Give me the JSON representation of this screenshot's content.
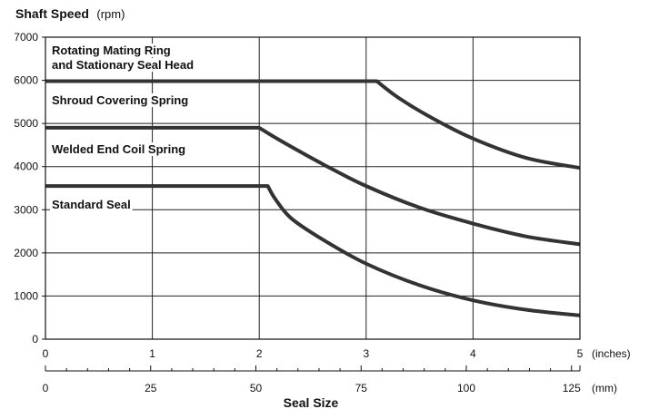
{
  "chart_data": {
    "type": "line",
    "title": "Shaft Speed",
    "title_unit": "(rpm)",
    "xlabel": "Seal Size",
    "xlim": [
      0,
      5
    ],
    "ylim": [
      0,
      7000
    ],
    "grid": true,
    "y_ticks": [
      0,
      1000,
      2000,
      3000,
      4000,
      5000,
      6000,
      7000
    ],
    "x_ticks_inches": [
      0,
      1,
      2,
      3,
      4,
      5
    ],
    "x_unit_inches": "(inches)",
    "x_ticks_mm": [
      0,
      25,
      50,
      75,
      100,
      125
    ],
    "x_unit_mm": "(mm)",
    "series": [
      {
        "name": "Rotating Mating Ring and Stationary Seal Head",
        "label_lines": [
          "Rotating Mating Ring",
          "and Stationary Seal Head"
        ],
        "x": [
          0,
          3.1,
          3.3,
          3.6,
          4.0,
          4.5,
          5.0
        ],
        "y": [
          5980,
          5980,
          5600,
          5150,
          4650,
          4200,
          3970
        ]
      },
      {
        "name": "Shroud Covering Spring",
        "label_lines": [
          "Shroud Covering Spring"
        ],
        "x": [],
        "y": []
      },
      {
        "name": "Welded End Coil Spring",
        "label_lines": [
          "Welded End Coil Spring"
        ],
        "x": [
          0,
          2.0,
          2.2,
          2.6,
          3.0,
          3.5,
          4.0,
          4.5,
          5.0
        ],
        "y": [
          4900,
          4900,
          4600,
          4050,
          3550,
          3050,
          2680,
          2380,
          2200
        ]
      },
      {
        "name": "Standard Seal",
        "label_lines": [
          "Standard Seal"
        ],
        "x": [
          0,
          2.08,
          2.15,
          2.3,
          2.6,
          3.0,
          3.5,
          4.0,
          4.5,
          5.0
        ],
        "y": [
          3550,
          3550,
          3250,
          2800,
          2300,
          1750,
          1250,
          900,
          680,
          550
        ]
      }
    ]
  }
}
